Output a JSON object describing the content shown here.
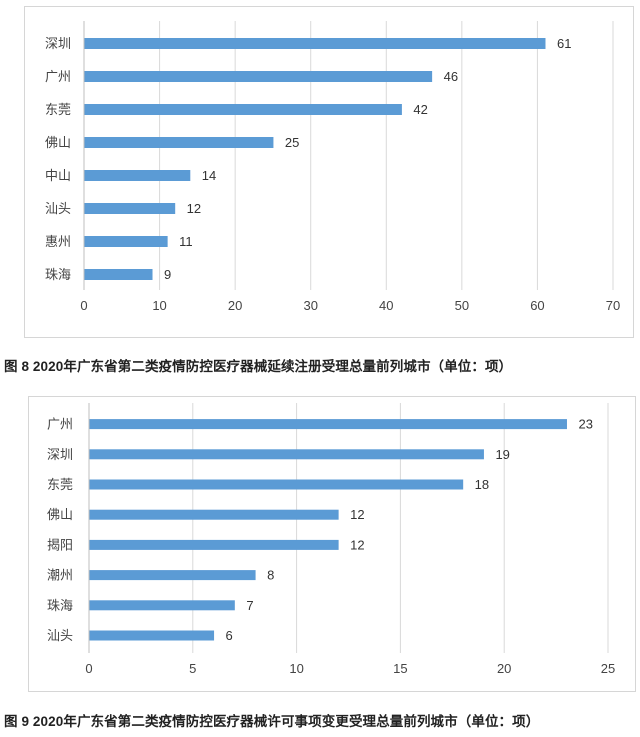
{
  "colors": {
    "bar": "#5b9bd5",
    "grid": "#d9d9d9",
    "axis": "#bfbfbf"
  },
  "chart_data": [
    {
      "type": "bar",
      "orientation": "horizontal",
      "categories": [
        "深圳",
        "广州",
        "东莞",
        "佛山",
        "中山",
        "汕头",
        "惠州",
        "珠海"
      ],
      "values": [
        61,
        46,
        42,
        25,
        14,
        12,
        11,
        9
      ],
      "xticks": [
        "0",
        "10",
        "20",
        "30",
        "40",
        "50",
        "60",
        "70"
      ],
      "xlim": [
        0,
        70
      ],
      "grid": "vertical",
      "caption": "图 8  2020年广东省第二类疫情防控医疗器械延续注册受理总量前列城市（单位：项）"
    },
    {
      "type": "bar",
      "orientation": "horizontal",
      "categories": [
        "广州",
        "深圳",
        "东莞",
        "佛山",
        "揭阳",
        "潮州",
        "珠海",
        "汕头"
      ],
      "values": [
        23,
        19,
        18,
        12,
        12,
        8,
        7,
        6
      ],
      "xticks": [
        "0",
        "5",
        "10",
        "15",
        "20",
        "25"
      ],
      "xlim": [
        0,
        25
      ],
      "grid": "vertical",
      "caption": "图 9  2020年广东省第二类疫情防控医疗器械许可事项变更受理总量前列城市（单位：项）"
    }
  ]
}
